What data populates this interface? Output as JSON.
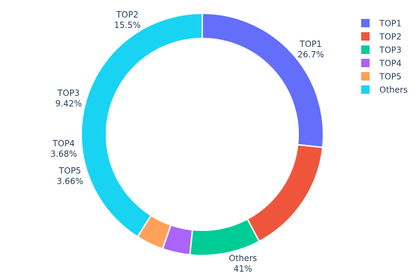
{
  "chart_data": {
    "type": "pie",
    "hole": true,
    "legend_position": "top-right",
    "slices": [
      {
        "label": "TOP1",
        "percent_text": "26.7%",
        "value": 26.7,
        "color": "#636efa"
      },
      {
        "label": "TOP2",
        "percent_text": "15.5%",
        "value": 15.5,
        "color": "#EF553B"
      },
      {
        "label": "TOP3",
        "percent_text": "9.42%",
        "value": 9.42,
        "color": "#00cc96"
      },
      {
        "label": "TOP4",
        "percent_text": "3.68%",
        "value": 3.68,
        "color": "#ab63fa"
      },
      {
        "label": "TOP5",
        "percent_text": "3.66%",
        "value": 3.66,
        "color": "#FFA15A"
      },
      {
        "label": "Others",
        "percent_text": "41%",
        "value": 41.0,
        "color": "#19d3f3"
      }
    ]
  }
}
